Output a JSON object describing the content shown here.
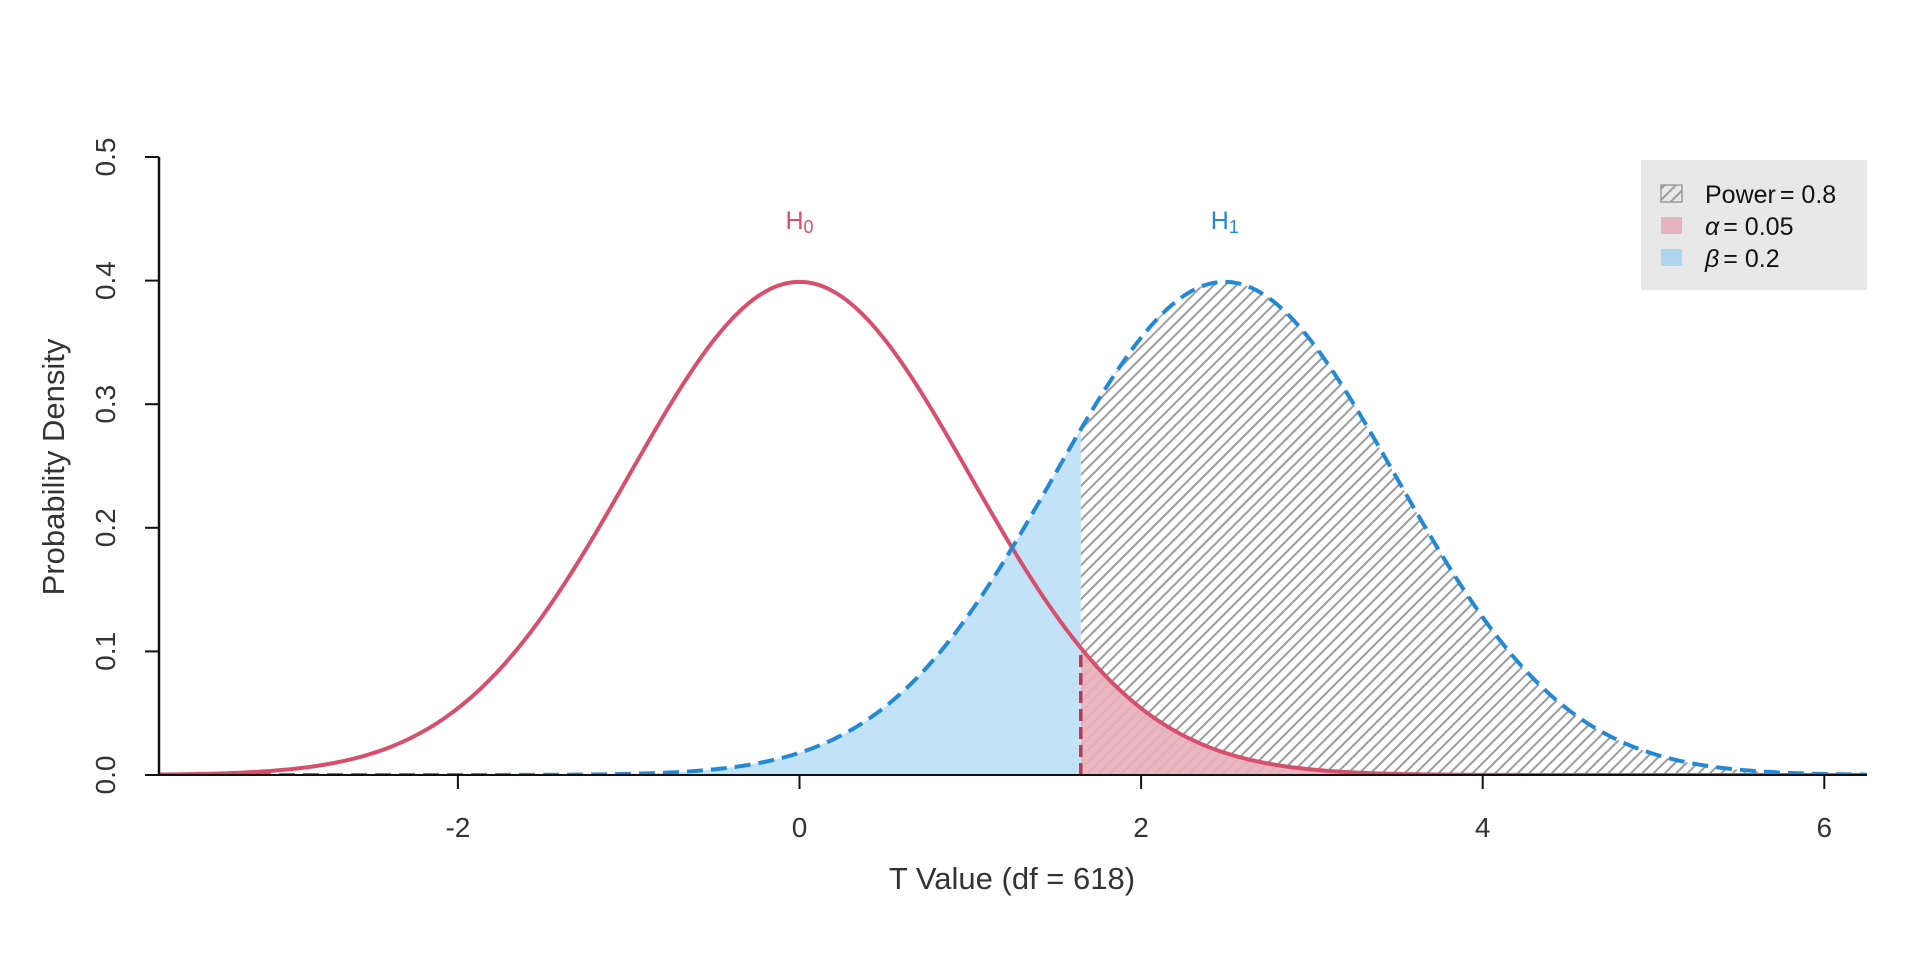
{
  "chart_data": {
    "type": "area",
    "xlabel": "T Value (df = 618)",
    "ylabel": "Probability Density",
    "xlim": [
      -3.75,
      6.25
    ],
    "ylim": [
      0,
      0.5
    ],
    "x_ticks": [
      -2,
      0,
      2,
      4,
      6
    ],
    "x_tick_labels": [
      "-2",
      "0",
      "2",
      "4",
      "6"
    ],
    "y_ticks": [
      0,
      0.1,
      0.2,
      0.3,
      0.4,
      0.5
    ],
    "y_tick_labels": [
      "0.0",
      "0.1",
      "0.2",
      "0.3",
      "0.4",
      "0.5"
    ],
    "critical_value": 1.647,
    "series": [
      {
        "name": "H0",
        "label_main": "H",
        "label_sub": "0",
        "distribution": "t",
        "df": 618,
        "location": 0,
        "peak_density": 0.399,
        "line_style": "solid",
        "color": "#D6506D"
      },
      {
        "name": "H1",
        "label_main": "H",
        "label_sub": "1",
        "distribution": "t",
        "df": 618,
        "location": 2.49,
        "peak_density": 0.399,
        "line_style": "dashed",
        "color": "#2389D4"
      }
    ],
    "shaded_regions": [
      {
        "name": "Power",
        "value": 0.8,
        "under": "H1",
        "from": 1.647,
        "to": 6.25,
        "fill": "hatched-grey"
      },
      {
        "name": "alpha",
        "value": 0.05,
        "under": "H0",
        "from": 1.647,
        "to": 6.25,
        "fill": "#E8B0BA"
      },
      {
        "name": "beta",
        "value": 0.2,
        "under": "H1",
        "from": -3.75,
        "to": 1.647,
        "fill": "#BDE0F6"
      }
    ],
    "legend": {
      "position": "top-right",
      "background": "#E8E8E8",
      "items": [
        {
          "symbol": "",
          "label": "Power",
          "value_text": "= 0.8",
          "swatch": "hatch"
        },
        {
          "symbol": "α",
          "label": "",
          "value_text": "= 0.05",
          "swatch": "#E5B5BE"
        },
        {
          "symbol": "β",
          "label": "",
          "value_text": "= 0.2",
          "swatch": "#AFD6EE"
        }
      ]
    },
    "grid": false
  }
}
